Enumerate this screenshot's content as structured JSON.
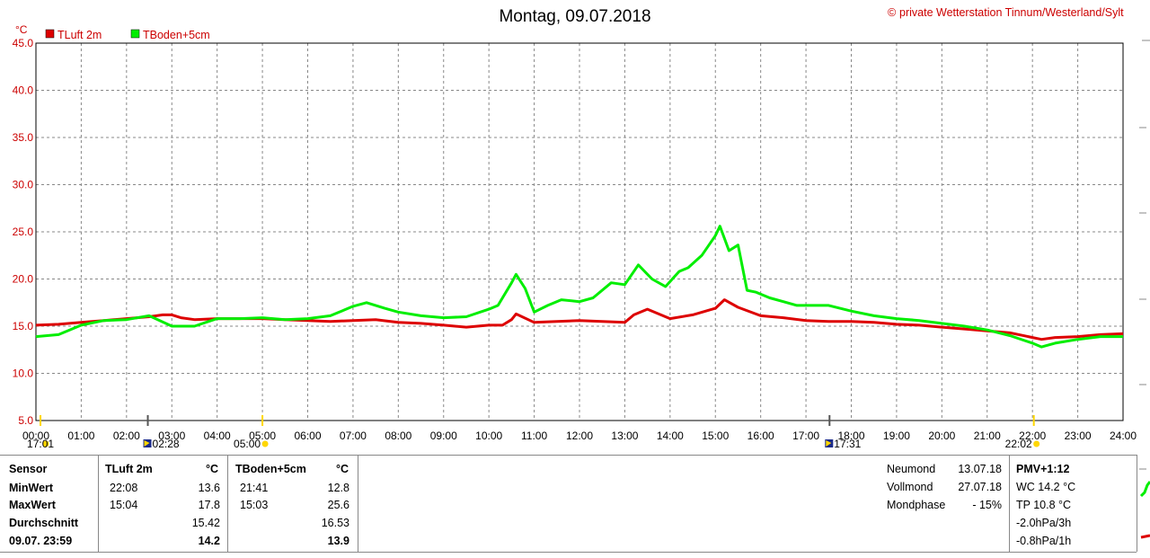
{
  "title": "Montag, 09.07.2018",
  "copyright": "private Wetterstation Tinnum/Westerland/Sylt",
  "chart_data": {
    "type": "line",
    "yunit": "°C",
    "ylim": [
      5,
      45
    ],
    "yticks": [
      "5.0",
      "10.0",
      "15.0",
      "20.0",
      "25.0",
      "30.0",
      "35.0",
      "40.0",
      "45.0"
    ],
    "xlim": [
      0,
      24
    ],
    "xticks": [
      "00:00",
      "01:00",
      "02:00",
      "03:00",
      "04:00",
      "05:00",
      "06:00",
      "07:00",
      "08:00",
      "09:00",
      "10:00",
      "11:00",
      "12:00",
      "13:00",
      "14:00",
      "15:00",
      "16:00",
      "17:00",
      "18:00",
      "19:00",
      "20:00",
      "21:00",
      "22:00",
      "23:00",
      "24:00"
    ],
    "grid": true,
    "legend_position": "top-left",
    "series": [
      {
        "name": "TLuft 2m",
        "color": "#dd0000",
        "x": [
          0,
          0.5,
          1,
          1.5,
          2,
          2.5,
          2.8,
          3,
          3.2,
          3.5,
          4,
          4.5,
          5,
          5.5,
          6,
          6.5,
          7,
          7.5,
          8,
          8.5,
          9,
          9.5,
          10,
          10.3,
          10.5,
          10.6,
          11,
          11.5,
          12,
          12.5,
          13,
          13.2,
          13.5,
          14,
          14.5,
          15,
          15.2,
          15.5,
          16,
          16.5,
          17,
          17.5,
          18,
          18.5,
          19,
          19.5,
          20,
          20.5,
          21,
          21.5,
          22,
          22.2,
          22.5,
          23,
          23.5,
          24
        ],
        "values": [
          15.1,
          15.2,
          15.4,
          15.6,
          15.8,
          16.0,
          16.2,
          16.2,
          15.9,
          15.7,
          15.8,
          15.8,
          15.8,
          15.7,
          15.6,
          15.5,
          15.6,
          15.7,
          15.4,
          15.3,
          15.1,
          14.9,
          15.1,
          15.1,
          15.7,
          16.3,
          15.4,
          15.5,
          15.6,
          15.5,
          15.4,
          16.2,
          16.8,
          15.8,
          16.2,
          16.9,
          17.8,
          17.0,
          16.1,
          15.9,
          15.6,
          15.5,
          15.5,
          15.4,
          15.2,
          15.1,
          14.9,
          14.7,
          14.5,
          14.3,
          13.8,
          13.6,
          13.8,
          13.9,
          14.1,
          14.2
        ]
      },
      {
        "name": "TBoden+5cm",
        "color": "#00ee00",
        "x": [
          0,
          0.5,
          1,
          1.5,
          2,
          2.5,
          3,
          3.5,
          4,
          4.5,
          5,
          5.5,
          6,
          6.5,
          7,
          7.3,
          7.7,
          8,
          8.5,
          9,
          9.5,
          10,
          10.2,
          10.5,
          10.6,
          10.8,
          11,
          11.3,
          11.6,
          12,
          12.3,
          12.7,
          13,
          13.3,
          13.6,
          13.9,
          14.2,
          14.4,
          14.7,
          15,
          15.1,
          15.3,
          15.5,
          15.7,
          15.9,
          16.2,
          16.5,
          16.8,
          17,
          17.5,
          18,
          18.5,
          19,
          19.5,
          20,
          20.5,
          21,
          21.5,
          22,
          22.2,
          22.5,
          23,
          23.5,
          24
        ],
        "values": [
          13.9,
          14.1,
          15.1,
          15.6,
          15.7,
          16.1,
          15.0,
          15.0,
          15.8,
          15.8,
          15.9,
          15.7,
          15.8,
          16.1,
          17.1,
          17.5,
          16.9,
          16.5,
          16.1,
          15.9,
          16.0,
          16.8,
          17.2,
          19.6,
          20.5,
          19.0,
          16.5,
          17.2,
          17.8,
          17.6,
          18.0,
          19.6,
          19.4,
          21.5,
          20.0,
          19.2,
          20.8,
          21.2,
          22.5,
          24.6,
          25.6,
          23.0,
          23.6,
          18.8,
          18.6,
          18.0,
          17.6,
          17.2,
          17.2,
          17.2,
          16.6,
          16.1,
          15.8,
          15.6,
          15.3,
          15.0,
          14.6,
          14.0,
          13.2,
          12.8,
          13.2,
          13.6,
          13.9,
          13.9
        ]
      }
    ],
    "markers": [
      {
        "x": 0.1,
        "label": "17:01",
        "icon": "sunset-icon"
      },
      {
        "x": 2.47,
        "label": "02:28",
        "icon": "moon-icon"
      },
      {
        "x": 5.0,
        "label": "05:00",
        "icon": "sunrise-icon"
      },
      {
        "x": 17.52,
        "label": "17:31",
        "icon": "moon-icon"
      },
      {
        "x": 22.03,
        "label": "22:02",
        "icon": "sunset-icon"
      }
    ]
  },
  "stats": {
    "sensor_label": "Sensor",
    "min_label": "MinWert",
    "max_label": "MaxWert",
    "avg_label": "Durchschnitt",
    "current_label": "09.07. 23:59",
    "col1": {
      "name": "TLuft 2m",
      "unit": "°C",
      "min_time": "22:08",
      "min_value": "13.6",
      "max_time": "15:04",
      "max_value": "17.8",
      "avg": "15.42",
      "current": "14.2"
    },
    "col2": {
      "name": "TBoden+5cm",
      "unit": "°C",
      "min_time": "21:41",
      "min_value": "12.8",
      "max_time": "15:03",
      "max_value": "25.6",
      "avg": "16.53",
      "current": "13.9"
    }
  },
  "moon": {
    "neumond_label": "Neumond",
    "neumond_date": "13.07.18",
    "vollmond_label": "Vollmond",
    "vollmond_date": "27.07.18",
    "phase_label": "Mondphase",
    "phase_value": "- 15%"
  },
  "extra": {
    "pmv": "PMV+1:12",
    "wc": "WC 14.2 °C",
    "tp": "TP 10.8 °C",
    "trend3h": "-2.0hPa/3h",
    "trend1h": "-0.8hPa/1h"
  }
}
